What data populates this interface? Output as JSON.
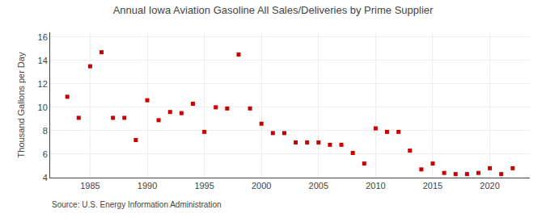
{
  "chart_data": {
    "type": "scatter",
    "title": "Annual Iowa Aviation Gasoline All Sales/Deliveries by Prime Supplier",
    "y_label": "Thousand Gallons per Day",
    "annotations": [
      "Source: U.S. Energy Information Administration"
    ],
    "x": [
      1983,
      1984,
      1985,
      1986,
      1987,
      1988,
      1989,
      1990,
      1991,
      1992,
      1993,
      1994,
      1995,
      1996,
      1997,
      1998,
      1999,
      2000,
      2001,
      2002,
      2003,
      2004,
      2005,
      2006,
      2007,
      2008,
      2009,
      2010,
      2011,
      2012,
      2013,
      2014,
      2015,
      2016,
      2017,
      2018,
      2019,
      2020,
      2021,
      2022
    ],
    "values": [
      10.9,
      9.1,
      13.5,
      14.7,
      9.1,
      9.1,
      7.2,
      10.6,
      8.9,
      9.6,
      9.5,
      10.3,
      7.9,
      10.0,
      9.9,
      14.5,
      9.9,
      8.6,
      7.8,
      7.8,
      7.0,
      7.0,
      7.0,
      6.8,
      6.8,
      6.1,
      5.2,
      8.2,
      7.9,
      7.9,
      6.3,
      4.7,
      5.2,
      4.4,
      4.3,
      4.3,
      4.4,
      4.8,
      4.3,
      4.8
    ],
    "color": "#cc0000",
    "marker": "square",
    "xlim": [
      1981.5,
      2023.5
    ],
    "xticks": [
      1985,
      1990,
      1995,
      2000,
      2005,
      2010,
      2015,
      2020
    ],
    "ylim": [
      4,
      16.4
    ],
    "yticks": [
      4,
      6,
      8,
      10,
      12,
      14,
      16
    ],
    "grid": true
  }
}
